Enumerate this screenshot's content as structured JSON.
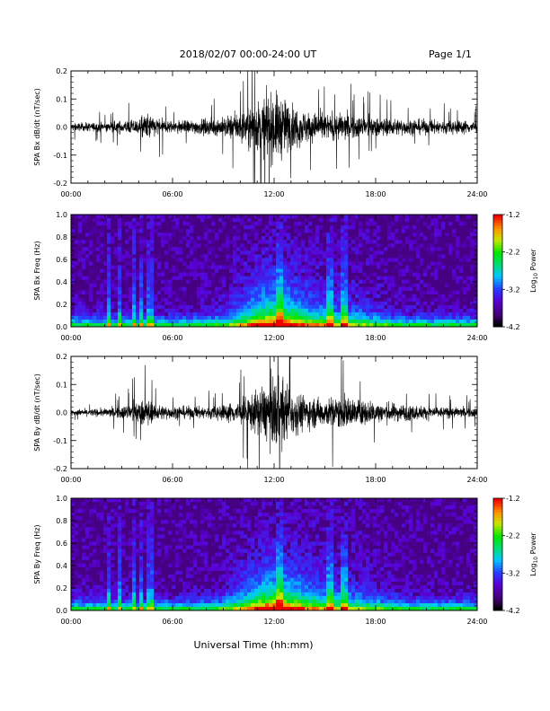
{
  "header": {
    "title": "2018/02/07  00:00-24:00 UT",
    "page": "Page 1/1"
  },
  "footer": {
    "xlabel": "Universal Time (hh:mm)"
  },
  "colorbar": {
    "label": "Log",
    "label_sub": "10",
    "label_suffix": " Power",
    "ticks": [
      "-1.2",
      "-2.2",
      "-3.2",
      "-4.2"
    ],
    "range": [
      -4.2,
      -1.2
    ]
  },
  "chart_data": [
    {
      "type": "line",
      "ylabel": "SPA Bx dB/dt (nT/sec)",
      "xlim": [
        0,
        24
      ],
      "ylim": [
        -0.2,
        0.2
      ],
      "xticks": [
        "00:00",
        "06:00",
        "12:00",
        "18:00",
        "24:00"
      ],
      "yticks": [
        "0.2",
        "0.1",
        "0.0",
        "-0.1",
        "-0.2"
      ],
      "series_color": "#000000",
      "envelope": {
        "x": [
          0,
          2,
          4,
          4.5,
          5,
          6,
          8,
          9,
          10,
          11,
          12,
          12.5,
          13,
          14,
          15,
          16,
          17,
          18,
          20,
          22,
          24
        ],
        "amplitude": [
          0.025,
          0.03,
          0.05,
          0.09,
          0.06,
          0.04,
          0.05,
          0.06,
          0.1,
          0.16,
          0.22,
          0.2,
          0.14,
          0.1,
          0.08,
          0.09,
          0.07,
          0.06,
          0.05,
          0.045,
          0.04
        ]
      }
    },
    {
      "type": "heatmap",
      "ylabel": "SPA Bx Freq (Hz)",
      "xlim": [
        0,
        24
      ],
      "ylim": [
        0,
        1.0
      ],
      "xticks": [
        "00:00",
        "06:00",
        "12:00",
        "18:00",
        "24:00"
      ],
      "yticks": [
        "1.0",
        "0.8",
        "0.6",
        "0.4",
        "0.2",
        "0.0"
      ],
      "zlim": [
        -4.2,
        -1.2
      ]
    },
    {
      "type": "line",
      "ylabel": "SPA By dB/dt (nT/sec)",
      "xlim": [
        0,
        24
      ],
      "ylim": [
        -0.2,
        0.2
      ],
      "xticks": [
        "00:00",
        "06:00",
        "12:00",
        "18:00",
        "24:00"
      ],
      "yticks": [
        "0.2",
        "0.1",
        "0.0",
        "-0.1",
        "-0.2"
      ],
      "series_color": "#000000",
      "envelope": {
        "x": [
          0,
          2,
          3,
          4.5,
          5,
          6,
          8,
          9,
          10,
          11,
          12,
          12.5,
          13,
          14,
          15,
          16,
          17,
          18,
          20,
          22,
          24
        ],
        "amplitude": [
          0.02,
          0.025,
          0.04,
          0.09,
          0.05,
          0.04,
          0.04,
          0.05,
          0.08,
          0.14,
          0.22,
          0.22,
          0.15,
          0.1,
          0.09,
          0.11,
          0.08,
          0.07,
          0.05,
          0.035,
          0.03
        ]
      }
    },
    {
      "type": "heatmap",
      "ylabel": "SPA By Freq (Hz)",
      "xlim": [
        0,
        24
      ],
      "ylim": [
        0,
        1.0
      ],
      "xticks": [
        "00:00",
        "06:00",
        "12:00",
        "18:00",
        "24:00"
      ],
      "yticks": [
        "1.0",
        "0.8",
        "0.6",
        "0.4",
        "0.2",
        "0.0"
      ],
      "zlim": [
        -4.2,
        -1.2
      ]
    }
  ]
}
